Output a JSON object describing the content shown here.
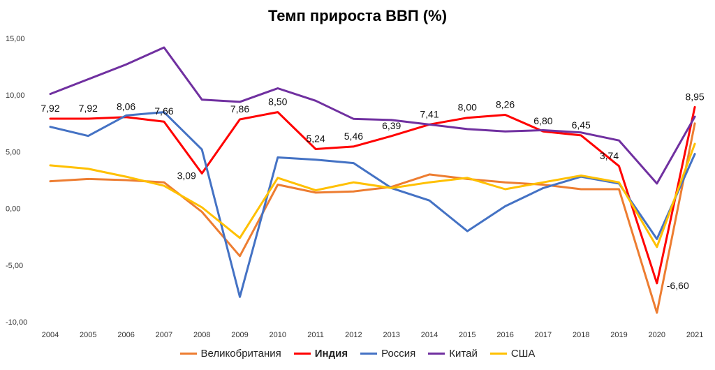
{
  "chart_data": {
    "type": "line",
    "title": "Темп прироста ВВП (%)",
    "x": [
      "2004",
      "2005",
      "2006",
      "2007",
      "2008",
      "2009",
      "2010",
      "2011",
      "2012",
      "2013",
      "2014",
      "2015",
      "2016",
      "2017",
      "2018",
      "2019",
      "2020",
      "2021"
    ],
    "ylim": [
      -10,
      15
    ],
    "yticks": [
      "-10,00",
      "-5,00",
      "0,00",
      "5,00",
      "10,00",
      "15,00"
    ],
    "grid": false,
    "legend_position": "bottom",
    "series": [
      {
        "name": "Великобритания",
        "color": "#ED7D31",
        "values": [
          2.4,
          2.6,
          2.5,
          2.3,
          -0.3,
          -4.2,
          2.1,
          1.4,
          1.5,
          1.9,
          3.0,
          2.6,
          2.3,
          2.1,
          1.7,
          1.7,
          -9.2,
          7.5
        ]
      },
      {
        "name": "Индия",
        "color": "#FF0000",
        "bold": true,
        "values": [
          7.92,
          7.92,
          8.06,
          7.66,
          3.09,
          7.86,
          8.5,
          5.24,
          5.46,
          6.39,
          7.41,
          8.0,
          8.26,
          6.8,
          6.45,
          3.74,
          -6.6,
          8.95
        ],
        "labels": [
          "7,92",
          "7,92",
          "8,06",
          "7,66",
          "3,09",
          "7,86",
          "8,50",
          "5,24",
          "5,46",
          "6,39",
          "7,41",
          "8,00",
          "8,26",
          "6,80",
          "6,45",
          "3,74",
          "-6,60",
          "8,95"
        ]
      },
      {
        "name": "Россия",
        "color": "#4472C4",
        "values": [
          7.2,
          6.4,
          8.2,
          8.5,
          5.2,
          -7.8,
          4.5,
          4.3,
          4.0,
          1.8,
          0.7,
          -2.0,
          0.2,
          1.8,
          2.8,
          2.2,
          -2.7,
          4.8
        ]
      },
      {
        "name": "Китай",
        "color": "#7030A0",
        "values": [
          10.1,
          11.4,
          12.7,
          14.2,
          9.6,
          9.4,
          10.6,
          9.5,
          7.9,
          7.8,
          7.4,
          7.0,
          6.8,
          6.9,
          6.7,
          6.0,
          2.2,
          8.1
        ]
      },
      {
        "name": "США",
        "color": "#FFC000",
        "values": [
          3.8,
          3.5,
          2.8,
          2.0,
          0.1,
          -2.6,
          2.7,
          1.6,
          2.3,
          1.8,
          2.3,
          2.7,
          1.7,
          2.3,
          2.9,
          2.3,
          -3.4,
          5.7
        ]
      }
    ]
  }
}
